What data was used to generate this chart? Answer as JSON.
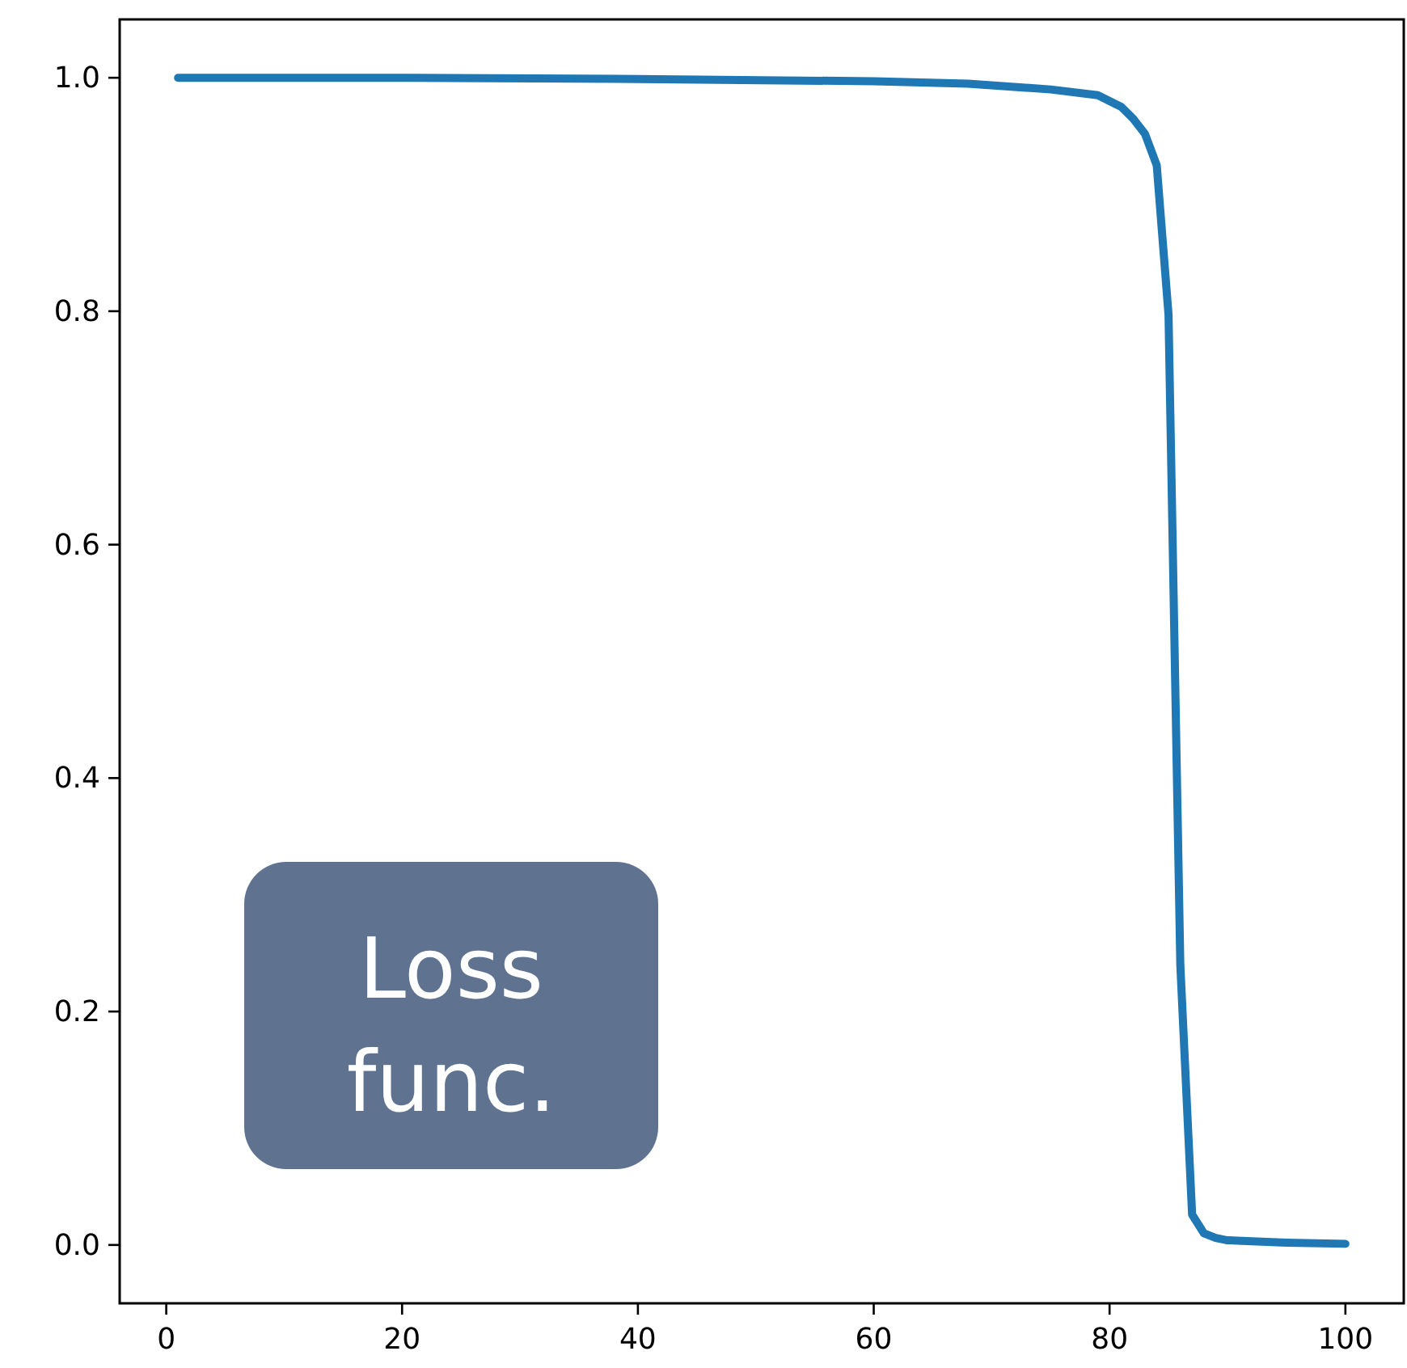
{
  "chart_data": {
    "type": "line",
    "x": [
      1,
      20,
      40,
      60,
      68,
      75,
      79,
      81,
      82,
      83,
      84,
      85,
      86,
      87,
      88,
      89,
      90,
      95,
      100
    ],
    "series": [
      {
        "color": "#1f77b4",
        "values": [
          1.0,
          1.0,
          0.999,
          0.997,
          0.995,
          0.99,
          0.985,
          0.975,
          0.965,
          0.952,
          0.925,
          0.797,
          0.24,
          0.026,
          0.01,
          0.006,
          0.004,
          0.002,
          0.001
        ]
      }
    ],
    "xlim": [
      -3.95,
      104.95
    ],
    "ylim": [
      -0.05,
      1.05
    ],
    "xticks": [
      0,
      20,
      40,
      60,
      80,
      100
    ],
    "yticks": [
      {
        "value": 0,
        "label": "0.0"
      },
      {
        "value": 0.2,
        "label": "0.2"
      },
      {
        "value": 0.4,
        "label": "0.4"
      },
      {
        "value": 0.6,
        "label": "0.6"
      },
      {
        "value": 0.8,
        "label": "0.8"
      },
      {
        "value": 1,
        "label": "1.0"
      }
    ],
    "grid": false,
    "marker": "none",
    "line_style": "solid",
    "annotations": [
      "Loss func."
    ]
  }
}
